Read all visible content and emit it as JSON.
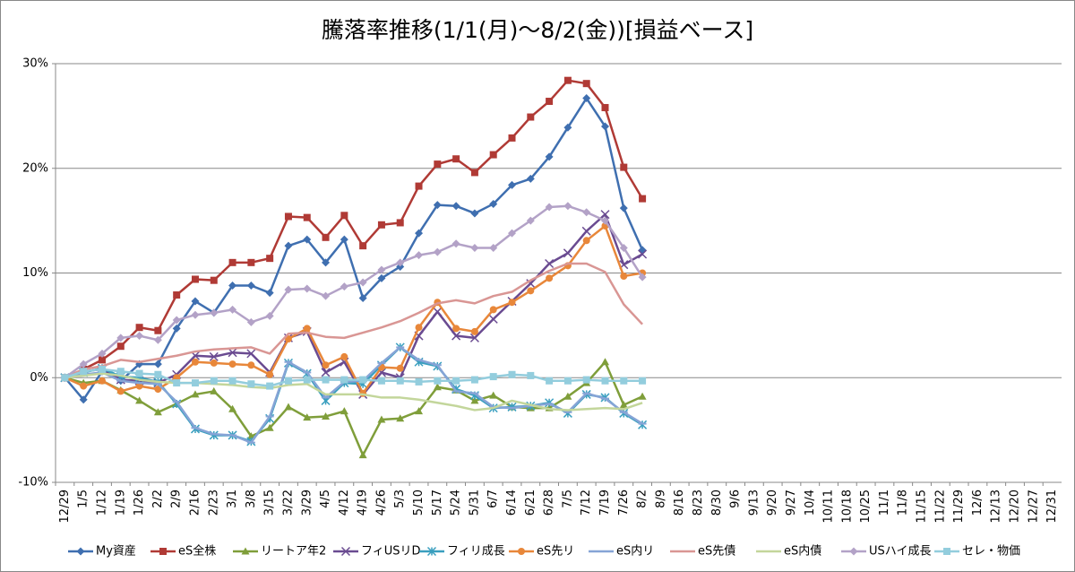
{
  "chart_data": {
    "type": "line",
    "title": "騰落率推移(1/1(月)～8/2(金))[損益ベース]",
    "categories": [
      "12/29",
      "1/5",
      "1/12",
      "1/19",
      "1/26",
      "2/2",
      "2/9",
      "2/16",
      "2/23",
      "3/1",
      "3/8",
      "3/15",
      "3/22",
      "3/29",
      "4/5",
      "4/12",
      "4/19",
      "4/26",
      "5/3",
      "5/10",
      "5/17",
      "5/24",
      "5/31",
      "6/7",
      "6/14",
      "6/21",
      "6/28",
      "7/5",
      "7/12",
      "7/19",
      "7/26",
      "8/2",
      "8/9",
      "8/16",
      "8/23",
      "8/30",
      "9/6",
      "9/13",
      "9/20",
      "9/27",
      "10/4",
      "10/11",
      "10/18",
      "10/25",
      "11/1",
      "11/8",
      "11/15",
      "11/22",
      "11/29",
      "12/6",
      "12/13",
      "12/20",
      "12/27",
      "12/31"
    ],
    "ylim": [
      -10,
      30
    ],
    "yticks": [
      {
        "value": -10,
        "label": "-10%"
      },
      {
        "value": 0,
        "label": "0%"
      },
      {
        "value": 10,
        "label": "10%"
      },
      {
        "value": 20,
        "label": "20%"
      },
      {
        "value": 30,
        "label": "30%"
      }
    ],
    "grid": true,
    "legend": "bottom",
    "series": [
      {
        "name": "My資産",
        "color": "#3f6fb0",
        "marker": "diamond",
        "values": [
          0,
          -2.1,
          0.6,
          -0.3,
          1.3,
          1.3,
          4.7,
          7.3,
          6.2,
          8.8,
          8.8,
          8.1,
          12.6,
          13.2,
          11.0,
          13.2,
          7.6,
          9.5,
          10.6,
          13.8,
          16.5,
          16.4,
          15.7,
          16.6,
          18.4,
          19.0,
          21.1,
          23.9,
          26.7,
          24.0,
          16.2,
          12.2,
          null,
          null,
          null,
          null,
          null,
          null,
          null,
          null,
          null,
          null,
          null,
          null,
          null,
          null,
          null,
          null,
          null,
          null,
          null,
          null,
          null,
          null
        ]
      },
      {
        "name": "eS全株",
        "color": "#b03a35",
        "marker": "square",
        "values": [
          0,
          0.8,
          1.7,
          3.0,
          4.8,
          4.5,
          7.9,
          9.4,
          9.3,
          11.0,
          11.0,
          11.4,
          15.4,
          15.3,
          13.4,
          15.5,
          12.6,
          14.6,
          14.8,
          18.3,
          20.4,
          20.9,
          19.6,
          21.3,
          22.9,
          24.9,
          26.4,
          28.4,
          28.1,
          25.8,
          20.1,
          17.1,
          null,
          null,
          null,
          null,
          null,
          null,
          null,
          null,
          null,
          null,
          null,
          null,
          null,
          null,
          null,
          null,
          null,
          null,
          null,
          null,
          null,
          null
        ]
      },
      {
        "name": "リートア年2",
        "color": "#7f9e3a",
        "marker": "triangle",
        "values": [
          0,
          -0.5,
          -0.3,
          -1.2,
          -2.2,
          -3.3,
          -2.5,
          -1.6,
          -1.3,
          -3.0,
          -5.6,
          -4.8,
          -2.8,
          -3.8,
          -3.7,
          -3.2,
          -7.4,
          -4.0,
          -3.9,
          -3.2,
          -0.9,
          -1.2,
          -2.2,
          -1.7,
          -2.8,
          -2.9,
          -2.9,
          -1.8,
          -0.5,
          1.5,
          -2.6,
          -1.8,
          null,
          null,
          null,
          null,
          null,
          null,
          null,
          null,
          null,
          null,
          null,
          null,
          null,
          null,
          null,
          null,
          null,
          null,
          null,
          null,
          null,
          null
        ]
      },
      {
        "name": "フィUSリD",
        "color": "#6a4b91",
        "marker": "x",
        "values": [
          0,
          0.6,
          0.8,
          -0.2,
          -0.3,
          -0.5,
          0.3,
          2.1,
          2.0,
          2.4,
          2.3,
          0.5,
          3.8,
          4.4,
          0.5,
          1.5,
          -1.6,
          0.5,
          0,
          4.0,
          6.3,
          4.0,
          3.8,
          5.6,
          7.3,
          9.0,
          10.9,
          11.9,
          14.0,
          15.6,
          10.8,
          11.8,
          null,
          null,
          null,
          null,
          null,
          null,
          null,
          null,
          null,
          null,
          null,
          null,
          null,
          null,
          null,
          null,
          null,
          null,
          null,
          null,
          null,
          null
        ]
      },
      {
        "name": "フィリ成長",
        "color": "#3a9fbf",
        "marker": "star",
        "values": [
          0,
          0.5,
          0.9,
          0.1,
          0,
          -0.4,
          -2.5,
          -4.9,
          -5.5,
          -5.5,
          -6.1,
          -3.9,
          1.4,
          0.4,
          -2.2,
          -0.5,
          -0.6,
          1.2,
          2.9,
          1.5,
          1.1,
          -1.1,
          -1.7,
          -2.9,
          -2.8,
          -2.7,
          -2.4,
          -3.4,
          -1.6,
          -1.9,
          -3.4,
          -4.5,
          null,
          null,
          null,
          null,
          null,
          null,
          null,
          null,
          null,
          null,
          null,
          null,
          null,
          null,
          null,
          null,
          null,
          null,
          null,
          null,
          null,
          null
        ]
      },
      {
        "name": "eS先リ",
        "color": "#e8873a",
        "marker": "circle",
        "values": [
          0,
          -0.8,
          -0.3,
          -1.3,
          -0.8,
          -1.1,
          0,
          1.5,
          1.4,
          1.3,
          1.2,
          0.3,
          3.7,
          4.7,
          1.2,
          2.0,
          -1.5,
          1.0,
          0.9,
          4.8,
          7.2,
          4.7,
          4.4,
          6.5,
          7.2,
          8.3,
          9.5,
          10.7,
          13.1,
          14.5,
          9.7,
          10.0,
          null,
          null,
          null,
          null,
          null,
          null,
          null,
          null,
          null,
          null,
          null,
          null,
          null,
          null,
          null,
          null,
          null,
          null,
          null,
          null,
          null,
          null
        ]
      },
      {
        "name": "eS内リ",
        "color": "#86a4d6",
        "marker": "plus",
        "values": [
          0,
          0.3,
          0.5,
          -0.3,
          -0.5,
          -0.6,
          -2.3,
          -4.8,
          -5.4,
          -5.5,
          -6.2,
          -3.7,
          1.5,
          0.5,
          -1.9,
          -0.4,
          -0.3,
          1.4,
          2.9,
          1.7,
          1.2,
          -1.3,
          -1.5,
          -2.8,
          -2.9,
          -2.7,
          -2.5,
          -3.3,
          -1.5,
          -2.0,
          -3.3,
          -4.4,
          null,
          null,
          null,
          null,
          null,
          null,
          null,
          null,
          null,
          null,
          null,
          null,
          null,
          null,
          null,
          null,
          null,
          null,
          null,
          null,
          null,
          null
        ]
      },
      {
        "name": "eS先債",
        "color": "#d99694",
        "marker": "none",
        "values": [
          0,
          0.8,
          1.1,
          1.7,
          1.5,
          1.8,
          2.1,
          2.5,
          2.7,
          2.8,
          2.9,
          2.3,
          4.2,
          4.3,
          3.9,
          3.8,
          4.3,
          4.8,
          5.4,
          6.2,
          7.1,
          7.4,
          7.1,
          7.8,
          8.2,
          9.3,
          10.2,
          10.9,
          10.9,
          10.1,
          7.0,
          5.1,
          null,
          null,
          null,
          null,
          null,
          null,
          null,
          null,
          null,
          null,
          null,
          null,
          null,
          null,
          null,
          null,
          null,
          null,
          null,
          null,
          null,
          null
        ]
      },
      {
        "name": "eS内債",
        "color": "#c3d69b",
        "marker": "none",
        "values": [
          0,
          0.2,
          0.4,
          0.2,
          -0.2,
          -0.4,
          -0.5,
          -0.5,
          -0.6,
          -0.7,
          -0.9,
          -1.0,
          -0.7,
          -0.6,
          -1.6,
          -1.6,
          -1.6,
          -1.9,
          -1.9,
          -2.1,
          -2.4,
          -2.7,
          -3.1,
          -2.9,
          -2.2,
          -2.6,
          -3.0,
          -3.1,
          -3.0,
          -2.9,
          -3.0,
          -2.4,
          null,
          null,
          null,
          null,
          null,
          null,
          null,
          null,
          null,
          null,
          null,
          null,
          null,
          null,
          null,
          null,
          null,
          null,
          null,
          null,
          null,
          null
        ]
      },
      {
        "name": "USハイ成長",
        "color": "#b3a2c7",
        "marker": "diamond",
        "values": [
          0,
          1.3,
          2.3,
          3.8,
          4.0,
          3.6,
          5.5,
          6.0,
          6.2,
          6.5,
          5.3,
          5.9,
          8.4,
          8.5,
          7.8,
          8.7,
          9.1,
          10.3,
          11.0,
          11.7,
          12.0,
          12.8,
          12.4,
          12.4,
          13.8,
          15.0,
          16.3,
          16.4,
          15.8,
          15.0,
          12.4,
          9.6,
          null,
          null,
          null,
          null,
          null,
          null,
          null,
          null,
          null,
          null,
          null,
          null,
          null,
          null,
          null,
          null,
          null,
          null,
          null,
          null,
          null,
          null
        ]
      },
      {
        "name": "セレ・物価",
        "color": "#93cddd",
        "marker": "square",
        "values": [
          0,
          0.6,
          0.8,
          0.6,
          0.4,
          0.3,
          -0.5,
          -0.5,
          -0.3,
          -0.3,
          -0.6,
          -0.8,
          -0.3,
          -0.2,
          -0.2,
          -0.2,
          -0.2,
          -0.3,
          -0.3,
          -0.4,
          -0.3,
          -0.3,
          -0.2,
          0.1,
          0.3,
          0.2,
          -0.3,
          -0.3,
          -0.2,
          -0.3,
          -0.3,
          -0.3,
          null,
          null,
          null,
          null,
          null,
          null,
          null,
          null,
          null,
          null,
          null,
          null,
          null,
          null,
          null,
          null,
          null,
          null,
          null,
          null,
          null,
          null
        ]
      }
    ]
  }
}
